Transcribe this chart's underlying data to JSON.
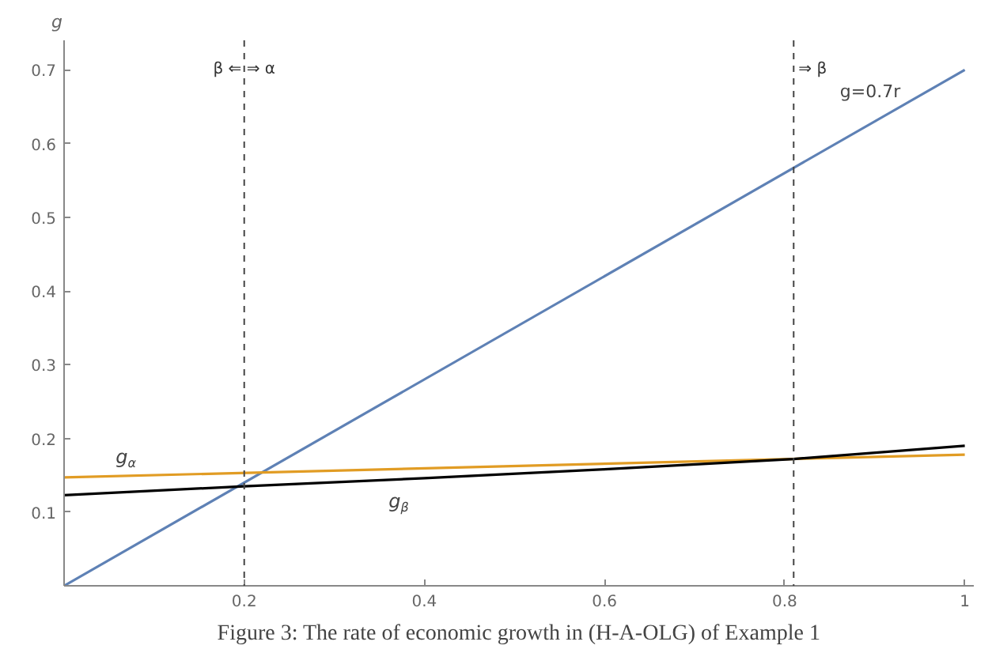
{
  "chart_data": {
    "type": "line",
    "ylabel": "g",
    "x": [
      0,
      1
    ],
    "series": [
      {
        "name": "g=0.7r",
        "color": "#5e81b5",
        "values": [
          0,
          0.7
        ]
      },
      {
        "name": "g$_{α}$",
        "color": "#e19c24",
        "values": [
          0.147,
          0.178
        ]
      },
      {
        "name": "g$_{β}$",
        "color": "#000000",
        "x": [
          0,
          0.2,
          0.4,
          0.6,
          0.81,
          1
        ],
        "values": [
          0.123,
          0.135,
          0.146,
          0.158,
          0.172,
          0.19
        ]
      }
    ],
    "xlim": [
      0,
      1.01
    ],
    "ylim": [
      0,
      0.74
    ],
    "xticks": [
      0.2,
      0.4,
      0.6,
      0.8,
      1.0
    ],
    "yticks": [
      0.1,
      0.2,
      0.3,
      0.4,
      0.5,
      0.6,
      0.7
    ],
    "ref_lines": [
      {
        "axis": "x",
        "value": 0.2,
        "label": "β ⇐ ⇒ α",
        "color": "#444444",
        "line_style": "dashed"
      },
      {
        "axis": "x",
        "value": 0.81,
        "label": "⇒ β",
        "color": "#444444",
        "line_style": "dashed"
      }
    ],
    "annotations": [
      "Figure 3: The rate of economic growth in (H-A-OLG) of Example 1"
    ],
    "grid": false,
    "line_style": "solid",
    "marker": "none"
  }
}
